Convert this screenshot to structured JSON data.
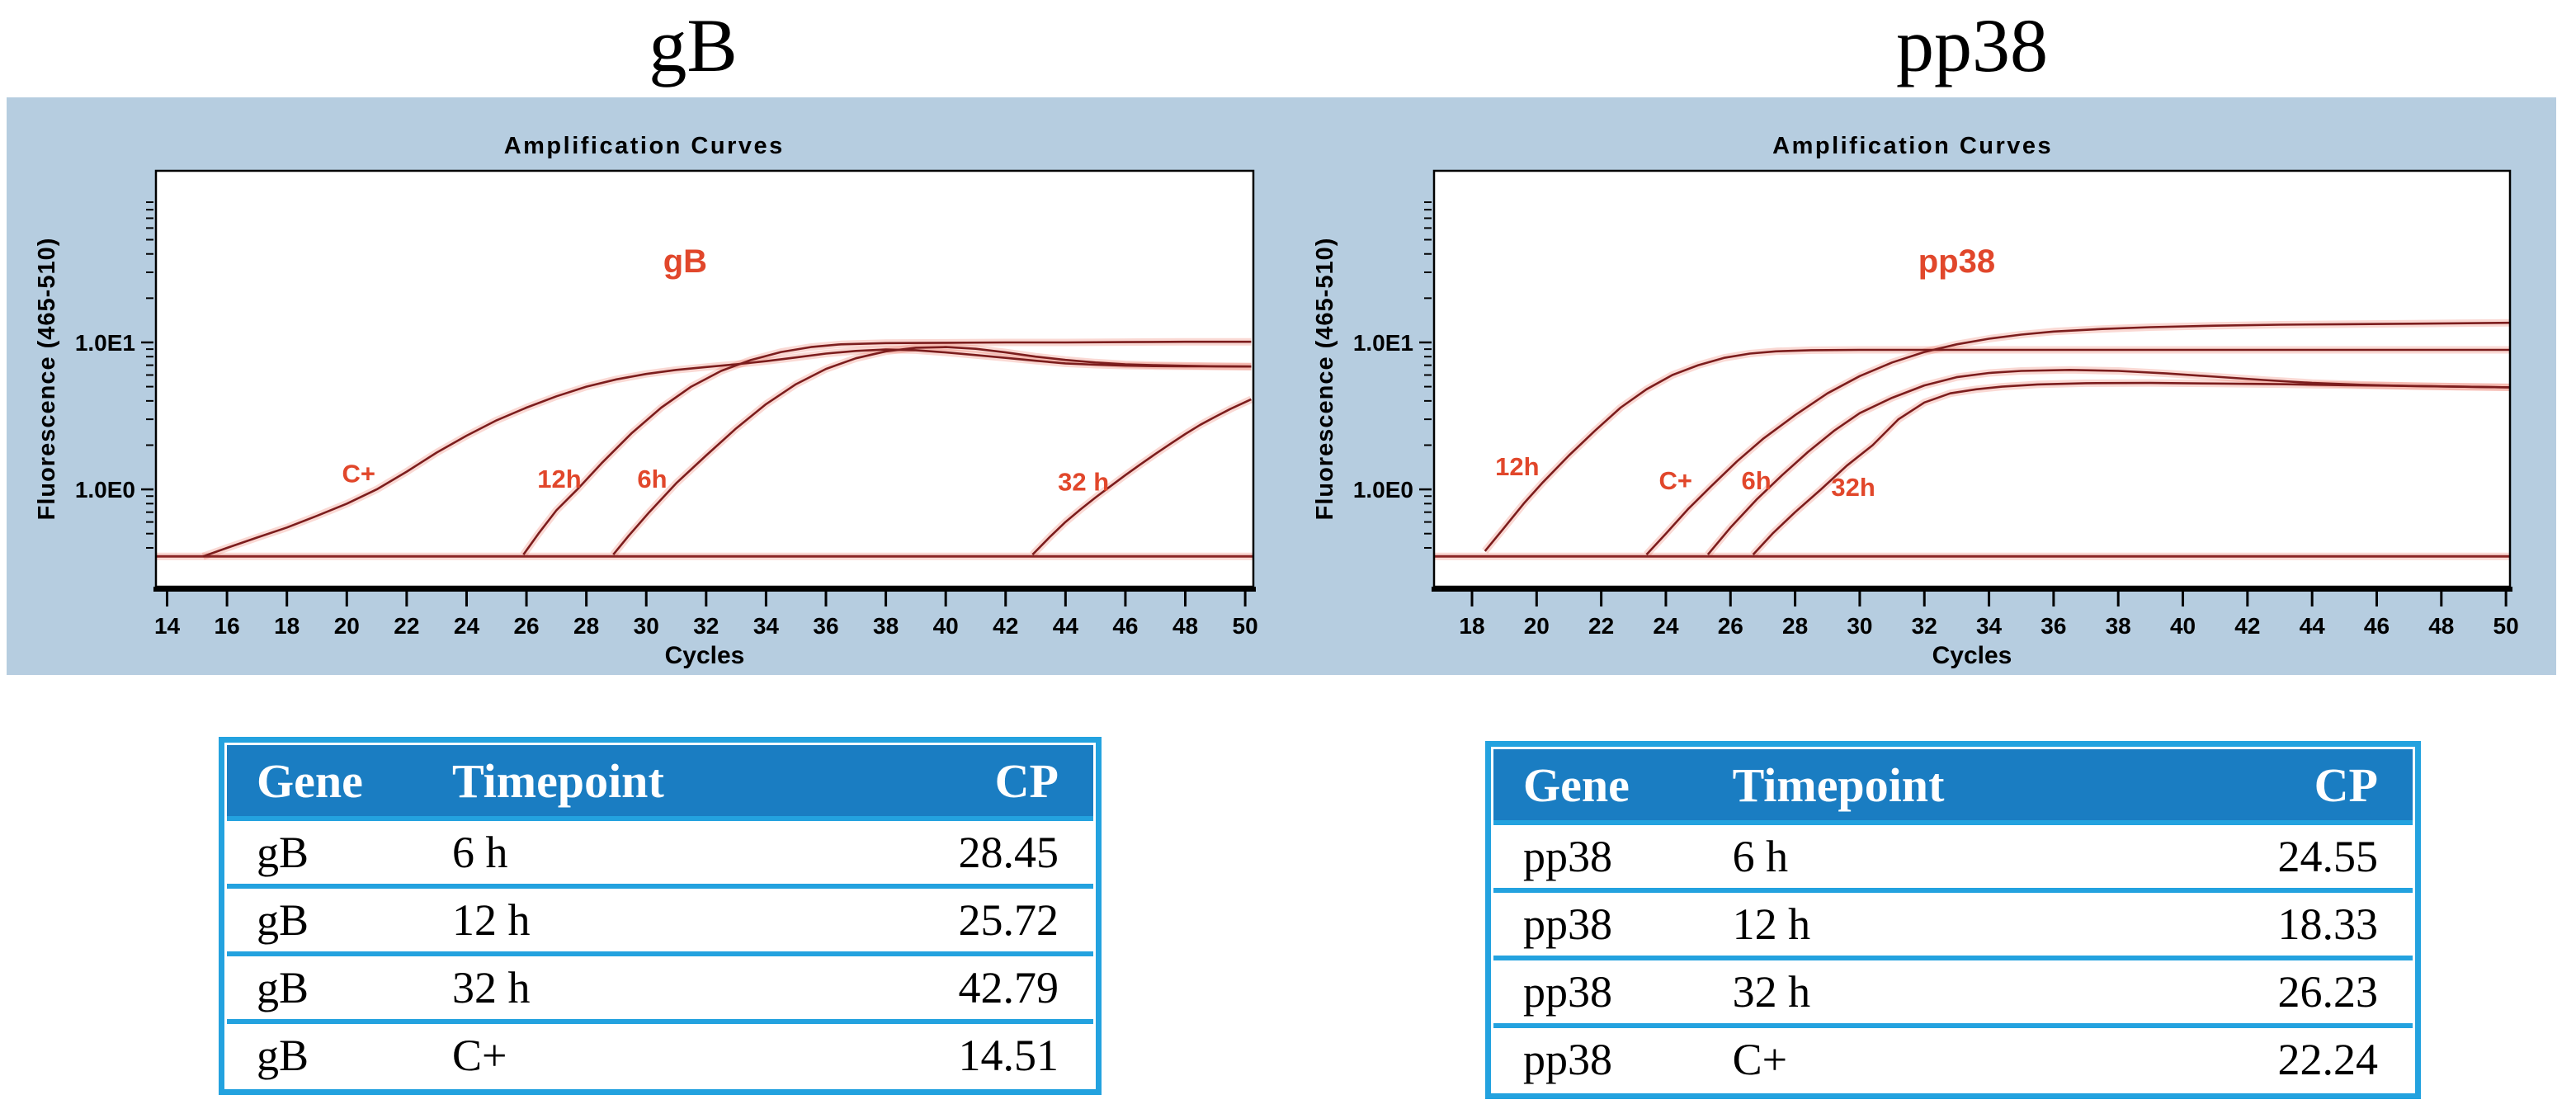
{
  "figure": {
    "left_title": "gB",
    "right_title": "pp38"
  },
  "colors": {
    "panel_background": "#b6cde0",
    "plot_background": "#ffffff",
    "curve": "#7c1d1d",
    "curve_glow": "rgba(232,80,60,0.22)",
    "threshold_line": "#8a2525",
    "curve_label": "#e1472b",
    "axis": "#000000",
    "table_border": "#23a2df",
    "table_header_bg": "#1a7dc2",
    "table_header_text": "#ffffff"
  },
  "chart_data": [
    {
      "type": "line",
      "id": "gb",
      "title": "Amplification Curves",
      "xlabel": "Cycles",
      "ylabel": "Fluorescence (465-510)",
      "x_ticks": [
        14,
        16,
        18,
        20,
        22,
        24,
        26,
        28,
        30,
        32,
        34,
        36,
        38,
        40,
        42,
        44,
        46,
        48,
        50
      ],
      "xlim": [
        13.6,
        50.3
      ],
      "y_scale": "log",
      "y_major_labels": [
        {
          "text": "1.0E1",
          "value": 10
        },
        {
          "text": "1.0E0",
          "value": 1
        }
      ],
      "threshold": 0.35,
      "legend_position": "none",
      "grid": false,
      "series": [
        {
          "name": "C+",
          "points": [
            [
              15.2,
              0.35
            ],
            [
              16,
              0.4
            ],
            [
              17,
              0.47
            ],
            [
              18,
              0.55
            ],
            [
              19,
              0.66
            ],
            [
              20,
              0.8
            ],
            [
              21,
              1.0
            ],
            [
              22,
              1.32
            ],
            [
              23,
              1.78
            ],
            [
              24,
              2.32
            ],
            [
              25,
              2.95
            ],
            [
              26,
              3.6
            ],
            [
              27,
              4.3
            ],
            [
              28,
              5.0
            ],
            [
              29,
              5.6
            ],
            [
              30,
              6.1
            ],
            [
              31,
              6.5
            ],
            [
              32,
              6.8
            ],
            [
              33,
              7.1
            ],
            [
              34,
              7.45
            ],
            [
              35,
              7.9
            ],
            [
              36,
              8.4
            ],
            [
              37,
              8.75
            ],
            [
              38,
              8.95
            ],
            [
              39,
              8.85
            ],
            [
              40,
              8.55
            ],
            [
              41,
              8.2
            ],
            [
              42,
              7.85
            ],
            [
              43,
              7.5
            ],
            [
              44,
              7.2
            ],
            [
              45,
              7.05
            ],
            [
              46,
              6.95
            ],
            [
              47,
              6.9
            ],
            [
              48,
              6.88
            ],
            [
              49,
              6.87
            ],
            [
              50.2,
              6.85
            ]
          ]
        },
        {
          "name": "12h",
          "points": [
            [
              25.9,
              0.36
            ],
            [
              26.4,
              0.5
            ],
            [
              27,
              0.72
            ],
            [
              27.7,
              1.0
            ],
            [
              28.5,
              1.5
            ],
            [
              29.5,
              2.4
            ],
            [
              30.5,
              3.6
            ],
            [
              31.5,
              5.0
            ],
            [
              32.5,
              6.4
            ],
            [
              33.5,
              7.6
            ],
            [
              34.5,
              8.6
            ],
            [
              35.5,
              9.3
            ],
            [
              36.5,
              9.7
            ],
            [
              38,
              9.9
            ],
            [
              40,
              9.95
            ],
            [
              42,
              10.0
            ],
            [
              44,
              10.0
            ],
            [
              46,
              10.05
            ],
            [
              48,
              10.1
            ],
            [
              50.2,
              10.1
            ]
          ]
        },
        {
          "name": "6h",
          "points": [
            [
              28.9,
              0.36
            ],
            [
              29.4,
              0.48
            ],
            [
              30.1,
              0.7
            ],
            [
              31,
              1.1
            ],
            [
              32,
              1.7
            ],
            [
              33,
              2.6
            ],
            [
              34,
              3.8
            ],
            [
              35,
              5.2
            ],
            [
              36,
              6.6
            ],
            [
              37,
              7.8
            ],
            [
              38,
              8.7
            ],
            [
              39,
              9.2
            ],
            [
              40,
              9.3
            ],
            [
              41,
              9.05
            ],
            [
              42,
              8.55
            ],
            [
              43,
              8.0
            ],
            [
              44,
              7.6
            ],
            [
              45,
              7.3
            ],
            [
              46,
              7.1
            ],
            [
              47,
              7.0
            ],
            [
              48,
              6.93
            ],
            [
              49,
              6.88
            ],
            [
              50.2,
              6.85
            ]
          ]
        },
        {
          "name": "32 h",
          "points": [
            [
              42.9,
              0.36
            ],
            [
              43.5,
              0.48
            ],
            [
              44,
              0.6
            ],
            [
              44.5,
              0.73
            ],
            [
              45,
              0.88
            ],
            [
              45.5,
              1.05
            ],
            [
              46,
              1.25
            ],
            [
              46.5,
              1.48
            ],
            [
              47,
              1.74
            ],
            [
              47.5,
              2.04
            ],
            [
              48,
              2.38
            ],
            [
              48.5,
              2.75
            ],
            [
              49,
              3.12
            ],
            [
              49.5,
              3.52
            ],
            [
              50.2,
              4.1
            ]
          ]
        }
      ],
      "annotations": [
        {
          "text": "gB",
          "x": 31.3,
          "y": 30,
          "large": true
        },
        {
          "text": "C+",
          "x": 20.4,
          "y": 1.12,
          "large": false
        },
        {
          "text": "12h",
          "x": 27.1,
          "y": 1.03,
          "large": false
        },
        {
          "text": "6h",
          "x": 30.2,
          "y": 1.03,
          "large": false
        },
        {
          "text": "32 h",
          "x": 44.6,
          "y": 0.98,
          "large": false
        }
      ]
    },
    {
      "type": "line",
      "id": "pp38",
      "title": "Amplification Curves",
      "xlabel": "Cycles",
      "ylabel": "Fluorescence (465-510)",
      "x_ticks": [
        18,
        20,
        22,
        24,
        26,
        28,
        30,
        32,
        34,
        36,
        38,
        40,
        42,
        44,
        46,
        48,
        50
      ],
      "xlim": [
        16.8,
        50.15
      ],
      "y_scale": "log",
      "y_major_labels": [
        {
          "text": "1.0E1",
          "value": 10
        },
        {
          "text": "1.0E0",
          "value": 1
        }
      ],
      "threshold": 0.35,
      "legend_position": "none",
      "grid": false,
      "series": [
        {
          "name": "12h",
          "points": [
            [
              18.4,
              0.38
            ],
            [
              19,
              0.55
            ],
            [
              19.6,
              0.8
            ],
            [
              20.2,
              1.12
            ],
            [
              21,
              1.7
            ],
            [
              21.8,
              2.5
            ],
            [
              22.6,
              3.6
            ],
            [
              23.4,
              4.8
            ],
            [
              24.2,
              6.0
            ],
            [
              25,
              7.0
            ],
            [
              25.8,
              7.85
            ],
            [
              26.6,
              8.4
            ],
            [
              27.4,
              8.7
            ],
            [
              28.5,
              8.85
            ],
            [
              30,
              8.9
            ],
            [
              33,
              8.9
            ],
            [
              36,
              8.9
            ],
            [
              40,
              8.9
            ],
            [
              45,
              8.9
            ],
            [
              50.1,
              8.9
            ]
          ]
        },
        {
          "name": "C+",
          "points": [
            [
              23.4,
              0.36
            ],
            [
              24,
              0.5
            ],
            [
              24.7,
              0.74
            ],
            [
              25.4,
              1.05
            ],
            [
              26.2,
              1.55
            ],
            [
              27,
              2.2
            ],
            [
              28,
              3.2
            ],
            [
              29,
              4.5
            ],
            [
              30,
              5.9
            ],
            [
              31,
              7.3
            ],
            [
              32,
              8.6
            ],
            [
              33,
              9.7
            ],
            [
              34,
              10.6
            ],
            [
              35,
              11.3
            ],
            [
              36,
              11.85
            ],
            [
              37.5,
              12.35
            ],
            [
              39,
              12.7
            ],
            [
              41,
              13.0
            ],
            [
              43,
              13.2
            ],
            [
              45,
              13.3
            ],
            [
              47,
              13.4
            ],
            [
              48.5,
              13.5
            ],
            [
              50.1,
              13.6
            ]
          ]
        },
        {
          "name": "6h",
          "points": [
            [
              25.3,
              0.36
            ],
            [
              26,
              0.55
            ],
            [
              26.8,
              0.85
            ],
            [
              27.6,
              1.25
            ],
            [
              28.4,
              1.8
            ],
            [
              29.2,
              2.5
            ],
            [
              30,
              3.3
            ],
            [
              31,
              4.2
            ],
            [
              32,
              5.1
            ],
            [
              33,
              5.8
            ],
            [
              34,
              6.2
            ],
            [
              35,
              6.4
            ],
            [
              36.5,
              6.5
            ],
            [
              38,
              6.4
            ],
            [
              39.5,
              6.15
            ],
            [
              41,
              5.85
            ],
            [
              42.5,
              5.55
            ],
            [
              44,
              5.3
            ],
            [
              45.5,
              5.15
            ],
            [
              47,
              5.05
            ],
            [
              48.5,
              5.0
            ],
            [
              50.1,
              4.95
            ]
          ]
        },
        {
          "name": "32h",
          "points": [
            [
              26.7,
              0.36
            ],
            [
              27.3,
              0.5
            ],
            [
              28,
              0.7
            ],
            [
              28.8,
              1.0
            ],
            [
              29.6,
              1.45
            ],
            [
              30.4,
              2.0
            ],
            [
              31.2,
              3.0
            ],
            [
              32,
              3.9
            ],
            [
              32.8,
              4.5
            ],
            [
              33.6,
              4.8
            ],
            [
              34.4,
              5.0
            ],
            [
              35.5,
              5.18
            ],
            [
              37,
              5.28
            ],
            [
              39,
              5.3
            ],
            [
              41,
              5.25
            ],
            [
              43,
              5.2
            ],
            [
              45,
              5.12
            ],
            [
              47,
              5.06
            ],
            [
              48.5,
              5.0
            ],
            [
              50.1,
              4.95
            ]
          ]
        }
      ],
      "annotations": [
        {
          "text": "pp38",
          "x": 33,
          "y": 30,
          "large": true
        },
        {
          "text": "12h",
          "x": 19.4,
          "y": 1.25,
          "large": false
        },
        {
          "text": "C+",
          "x": 24.3,
          "y": 1.0,
          "large": false
        },
        {
          "text": "6h",
          "x": 26.8,
          "y": 1.0,
          "large": false
        },
        {
          "text": "32h",
          "x": 29.8,
          "y": 0.9,
          "large": false
        }
      ]
    }
  ],
  "tables": [
    {
      "id": "gb",
      "columns": [
        "Gene",
        "Timepoint",
        "CP"
      ],
      "rows": [
        [
          "gB",
          "6 h",
          "28.45"
        ],
        [
          "gB",
          "12 h",
          "25.72"
        ],
        [
          "gB",
          "32 h",
          "42.79"
        ],
        [
          "gB",
          "C+",
          "14.51"
        ]
      ]
    },
    {
      "id": "pp38",
      "columns": [
        "Gene",
        "Timepoint",
        "CP"
      ],
      "rows": [
        [
          "pp38",
          "6 h",
          "24.55"
        ],
        [
          "pp38",
          "12 h",
          "18.33"
        ],
        [
          "pp38",
          "32 h",
          "26.23"
        ],
        [
          "pp38",
          "C+",
          "22.24"
        ]
      ]
    }
  ]
}
